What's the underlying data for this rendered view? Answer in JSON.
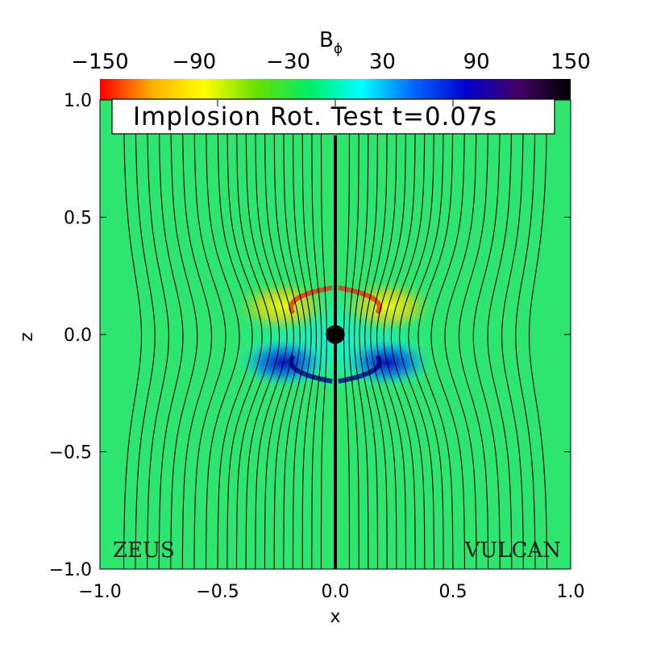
{
  "chart_data": {
    "type": "heatmap",
    "title": "Implosion Rot. Test t=0.07s",
    "xlabel": "x",
    "ylabel": "z",
    "xlim": [
      -1.0,
      1.0
    ],
    "ylim": [
      -1.0,
      1.0
    ],
    "x_ticks": [
      "−1.0",
      "−0.5",
      "0.0",
      "0.5",
      "1.0"
    ],
    "y_ticks": [
      "−1.0",
      "−0.5",
      "0.0",
      "0.5",
      "1.0"
    ],
    "colorbar": {
      "label_main": "B",
      "label_sub": "ϕ",
      "range": [
        -150,
        150
      ],
      "ticks": [
        "−150",
        "−90",
        "−30",
        "30",
        "90",
        "150"
      ],
      "colormap": [
        "#ff0000",
        "#ffb000",
        "#ffff00",
        "#66e000",
        "#00ee66",
        "#00ffff",
        "#0066ff",
        "#0000cc",
        "#440066",
        "#000000"
      ]
    },
    "background_color": "#2ee66e",
    "left_panel_label": "ZEUS",
    "right_panel_label": "VULCAN",
    "central_object": {
      "x": 0.0,
      "z": 0.0,
      "radius": 0.04
    },
    "field_lines": {
      "footpoints_x": [
        0.06,
        0.1,
        0.14,
        0.18,
        0.22,
        0.26,
        0.3,
        0.34,
        0.38,
        0.42,
        0.46,
        0.5,
        0.55,
        0.6,
        0.65,
        0.7,
        0.75,
        0.8,
        0.85,
        0.9
      ],
      "mirrored": true
    },
    "features": [
      {
        "name": "positive lobe upper",
        "x": 0.22,
        "z": 0.12,
        "value": -120
      },
      {
        "name": "negative lobe lower",
        "x": 0.22,
        "z": -0.12,
        "value": 120
      }
    ]
  }
}
